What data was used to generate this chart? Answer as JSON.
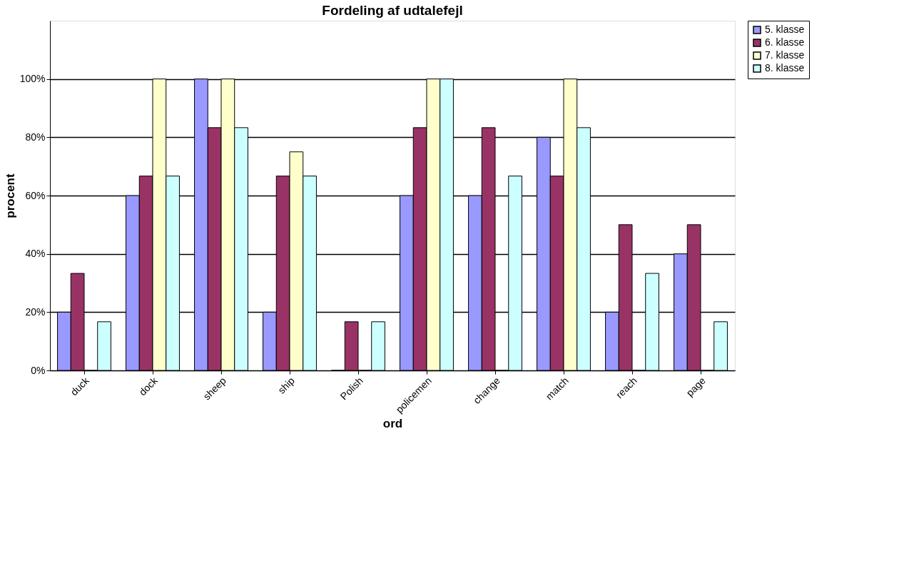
{
  "chart_data": {
    "type": "bar",
    "title": "Fordeling af udtalefejl",
    "xlabel": "ord",
    "ylabel": "procent",
    "categories": [
      "duck",
      "dock",
      "sheep",
      "ship",
      "Polish",
      "policemen",
      "change",
      "match",
      "reach",
      "page"
    ],
    "series": [
      {
        "name": "5. klasse",
        "color": "#9999ff",
        "values": [
          20,
          60,
          100,
          20,
          0,
          60,
          60,
          80,
          20,
          40
        ]
      },
      {
        "name": "6. klasse",
        "color": "#993366",
        "values": [
          33.3,
          66.7,
          83.3,
          66.7,
          16.7,
          83.3,
          83.3,
          66.7,
          50,
          50
        ]
      },
      {
        "name": "7. klasse",
        "color": "#ffffcc",
        "values": [
          0,
          100,
          100,
          75,
          0,
          100,
          0,
          100,
          0,
          0
        ]
      },
      {
        "name": "8. klasse",
        "color": "#ccffff",
        "values": [
          16.7,
          66.7,
          83.3,
          66.7,
          16.7,
          100,
          66.7,
          83.3,
          33.3,
          16.7
        ]
      }
    ],
    "ylim": [
      0,
      120
    ],
    "yticks": [
      {
        "value": 0,
        "label": "0%"
      },
      {
        "value": 20,
        "label": "20%"
      },
      {
        "value": 40,
        "label": "40%"
      },
      {
        "value": 60,
        "label": "60%"
      },
      {
        "value": 80,
        "label": "80%"
      },
      {
        "value": 100,
        "label": "100%"
      }
    ],
    "grid": "y",
    "legend": "right"
  }
}
